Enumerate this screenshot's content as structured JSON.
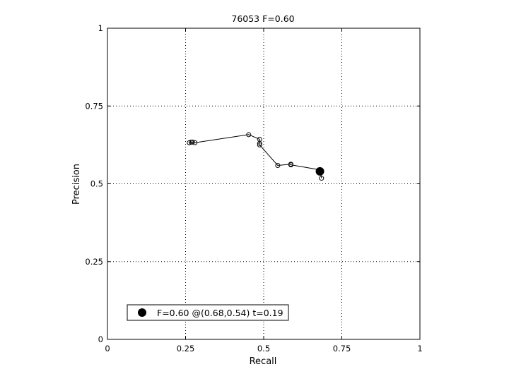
{
  "chart_data": {
    "type": "line",
    "title": "76053 F=0.60",
    "xlabel": "Recall",
    "ylabel": "Precision",
    "xlim": [
      0,
      1
    ],
    "ylim": [
      0,
      1
    ],
    "xticks": [
      0,
      0.25,
      0.5,
      0.75,
      1
    ],
    "yticks": [
      0,
      0.25,
      0.5,
      0.75,
      1
    ],
    "xtick_labels": [
      "0",
      "0.25",
      "0.5",
      "0.75",
      "1"
    ],
    "ytick_labels": [
      "0",
      "0.25",
      "0.5",
      "0.75",
      "1"
    ],
    "grid": true,
    "grid_style": "dotted",
    "series": [
      {
        "marker": "open-circle",
        "line": true,
        "color": "#000000",
        "x": [
          0.262,
          0.268,
          0.272,
          0.28,
          0.452,
          0.487,
          0.487,
          0.487,
          0.545,
          0.587,
          0.587,
          0.68,
          0.685
        ],
        "y": [
          0.632,
          0.634,
          0.634,
          0.632,
          0.658,
          0.643,
          0.63,
          0.625,
          0.559,
          0.563,
          0.561,
          0.545,
          0.518
        ]
      }
    ],
    "best_point": {
      "x": 0.68,
      "y": 0.54,
      "marker": "filled-circle",
      "color": "#000000"
    },
    "legend": {
      "label": "F=0.60 @(0.68,0.54) t=0.19",
      "placement": "bottom-left"
    }
  }
}
